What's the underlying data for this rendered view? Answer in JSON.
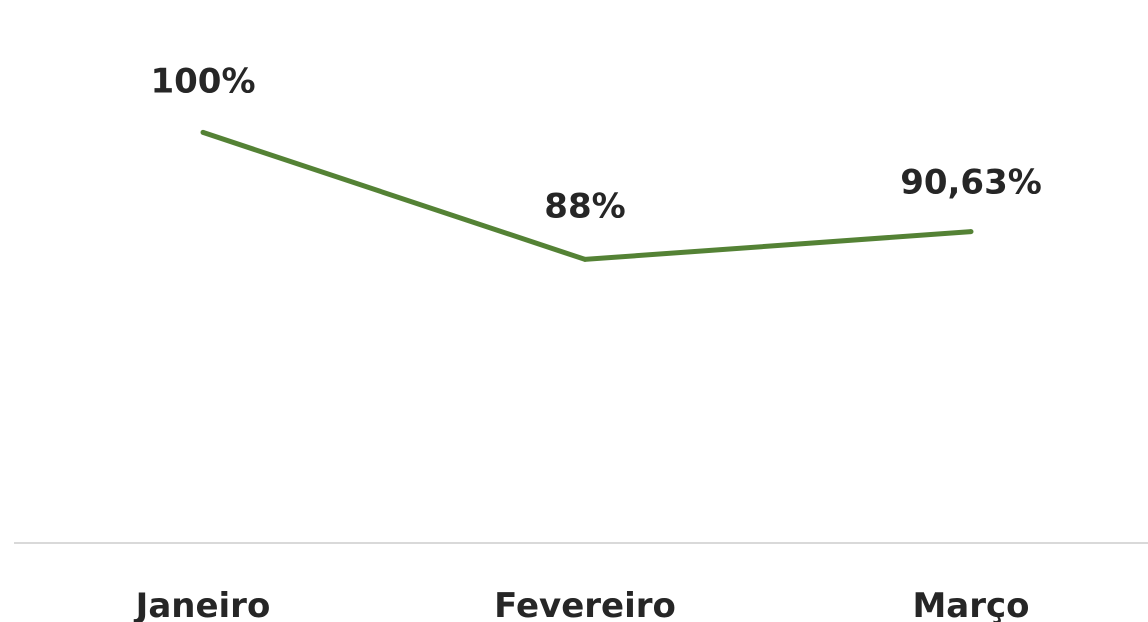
{
  "chart_data": {
    "type": "line",
    "categories": [
      "Janeiro",
      "Fevereiro",
      "Março"
    ],
    "values": [
      100,
      88,
      90.63
    ],
    "data_labels": [
      "100%",
      "88%",
      "90,63%"
    ],
    "series_color": "#548235",
    "axis_color": "#d9d9d9",
    "ylim": [
      70,
      104
    ],
    "grid": false,
    "legend": "none"
  }
}
